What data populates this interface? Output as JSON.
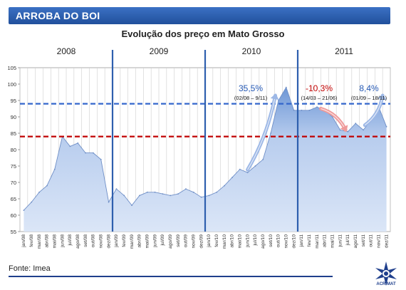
{
  "header": {
    "title": "ARROBA DO BOI"
  },
  "footer": {
    "source": "Fonte: Imea",
    "logo_text": "ACRIMAT"
  },
  "colors": {
    "accent": "#2458b4",
    "dashed_blue": "#3366cc",
    "dashed_red": "#c00000",
    "area_fill": "#a9c3ea"
  },
  "chart_data": {
    "type": "area",
    "title": "Evolução dos preço em Mato Grosso",
    "xlabel": "",
    "ylabel": "",
    "ylim": [
      55,
      105
    ],
    "yticks": [
      55,
      60,
      65,
      70,
      75,
      80,
      85,
      90,
      95,
      100,
      105
    ],
    "grid": true,
    "years": [
      "2008",
      "2009",
      "2010",
      "2011"
    ],
    "categories": [
      "jan/08",
      "fev/08",
      "mar/08",
      "abr/08",
      "mai/08",
      "jun/08",
      "jul/08",
      "ago/08",
      "set/08",
      "out/08",
      "nov/08",
      "dez/08",
      "jan/09",
      "fev/09",
      "mar/09",
      "abr/09",
      "mai/09",
      "jun/09",
      "jul/09",
      "ago/09",
      "set/09",
      "out/09",
      "nov/09",
      "dez/09",
      "jan/10",
      "fev/10",
      "mar/10",
      "abr/10",
      "mai/10",
      "jun/10",
      "jul/10",
      "ago/10",
      "set/10",
      "out/10",
      "nov/10",
      "dez/10",
      "jan/11",
      "fev/11",
      "mar/11",
      "abr/11",
      "mai/11",
      "jun/11",
      "jul/11",
      "ago/11",
      "set/11",
      "out/11",
      "nov/11",
      "dez/11"
    ],
    "series": [
      {
        "values": [
          61.5,
          64,
          67,
          69,
          74,
          84,
          81,
          82,
          79,
          79,
          77,
          64,
          68,
          66,
          63,
          66,
          67,
          67,
          66.5,
          66,
          66.5,
          68,
          67,
          65.5,
          66,
          67,
          69,
          71.5,
          74,
          73,
          75,
          77,
          85,
          95,
          99,
          92,
          92,
          92,
          93,
          92,
          90,
          86,
          85.5,
          88,
          86,
          89,
          93,
          87
        ]
      }
    ],
    "reference_lines": [
      {
        "value": 94,
        "color": "#3366cc"
      },
      {
        "value": 84,
        "color": "#c00000"
      }
    ],
    "annotations": [
      {
        "label": "35,5%",
        "sublabel": "(02/08 – 9/11)",
        "color": "#2458b4",
        "trend": "up",
        "from": 29,
        "to": 32.6
      },
      {
        "label": "-10,3%",
        "sublabel": "(14/03 – 21/06)",
        "color": "#c00000",
        "trend": "down",
        "from": 38.5,
        "to": 41.7
      },
      {
        "label": "8,4%",
        "sublabel": "(01/09 – 18/11)",
        "color": "#2458b4",
        "trend": "up",
        "from": 44.2,
        "to": 46.5
      }
    ]
  }
}
